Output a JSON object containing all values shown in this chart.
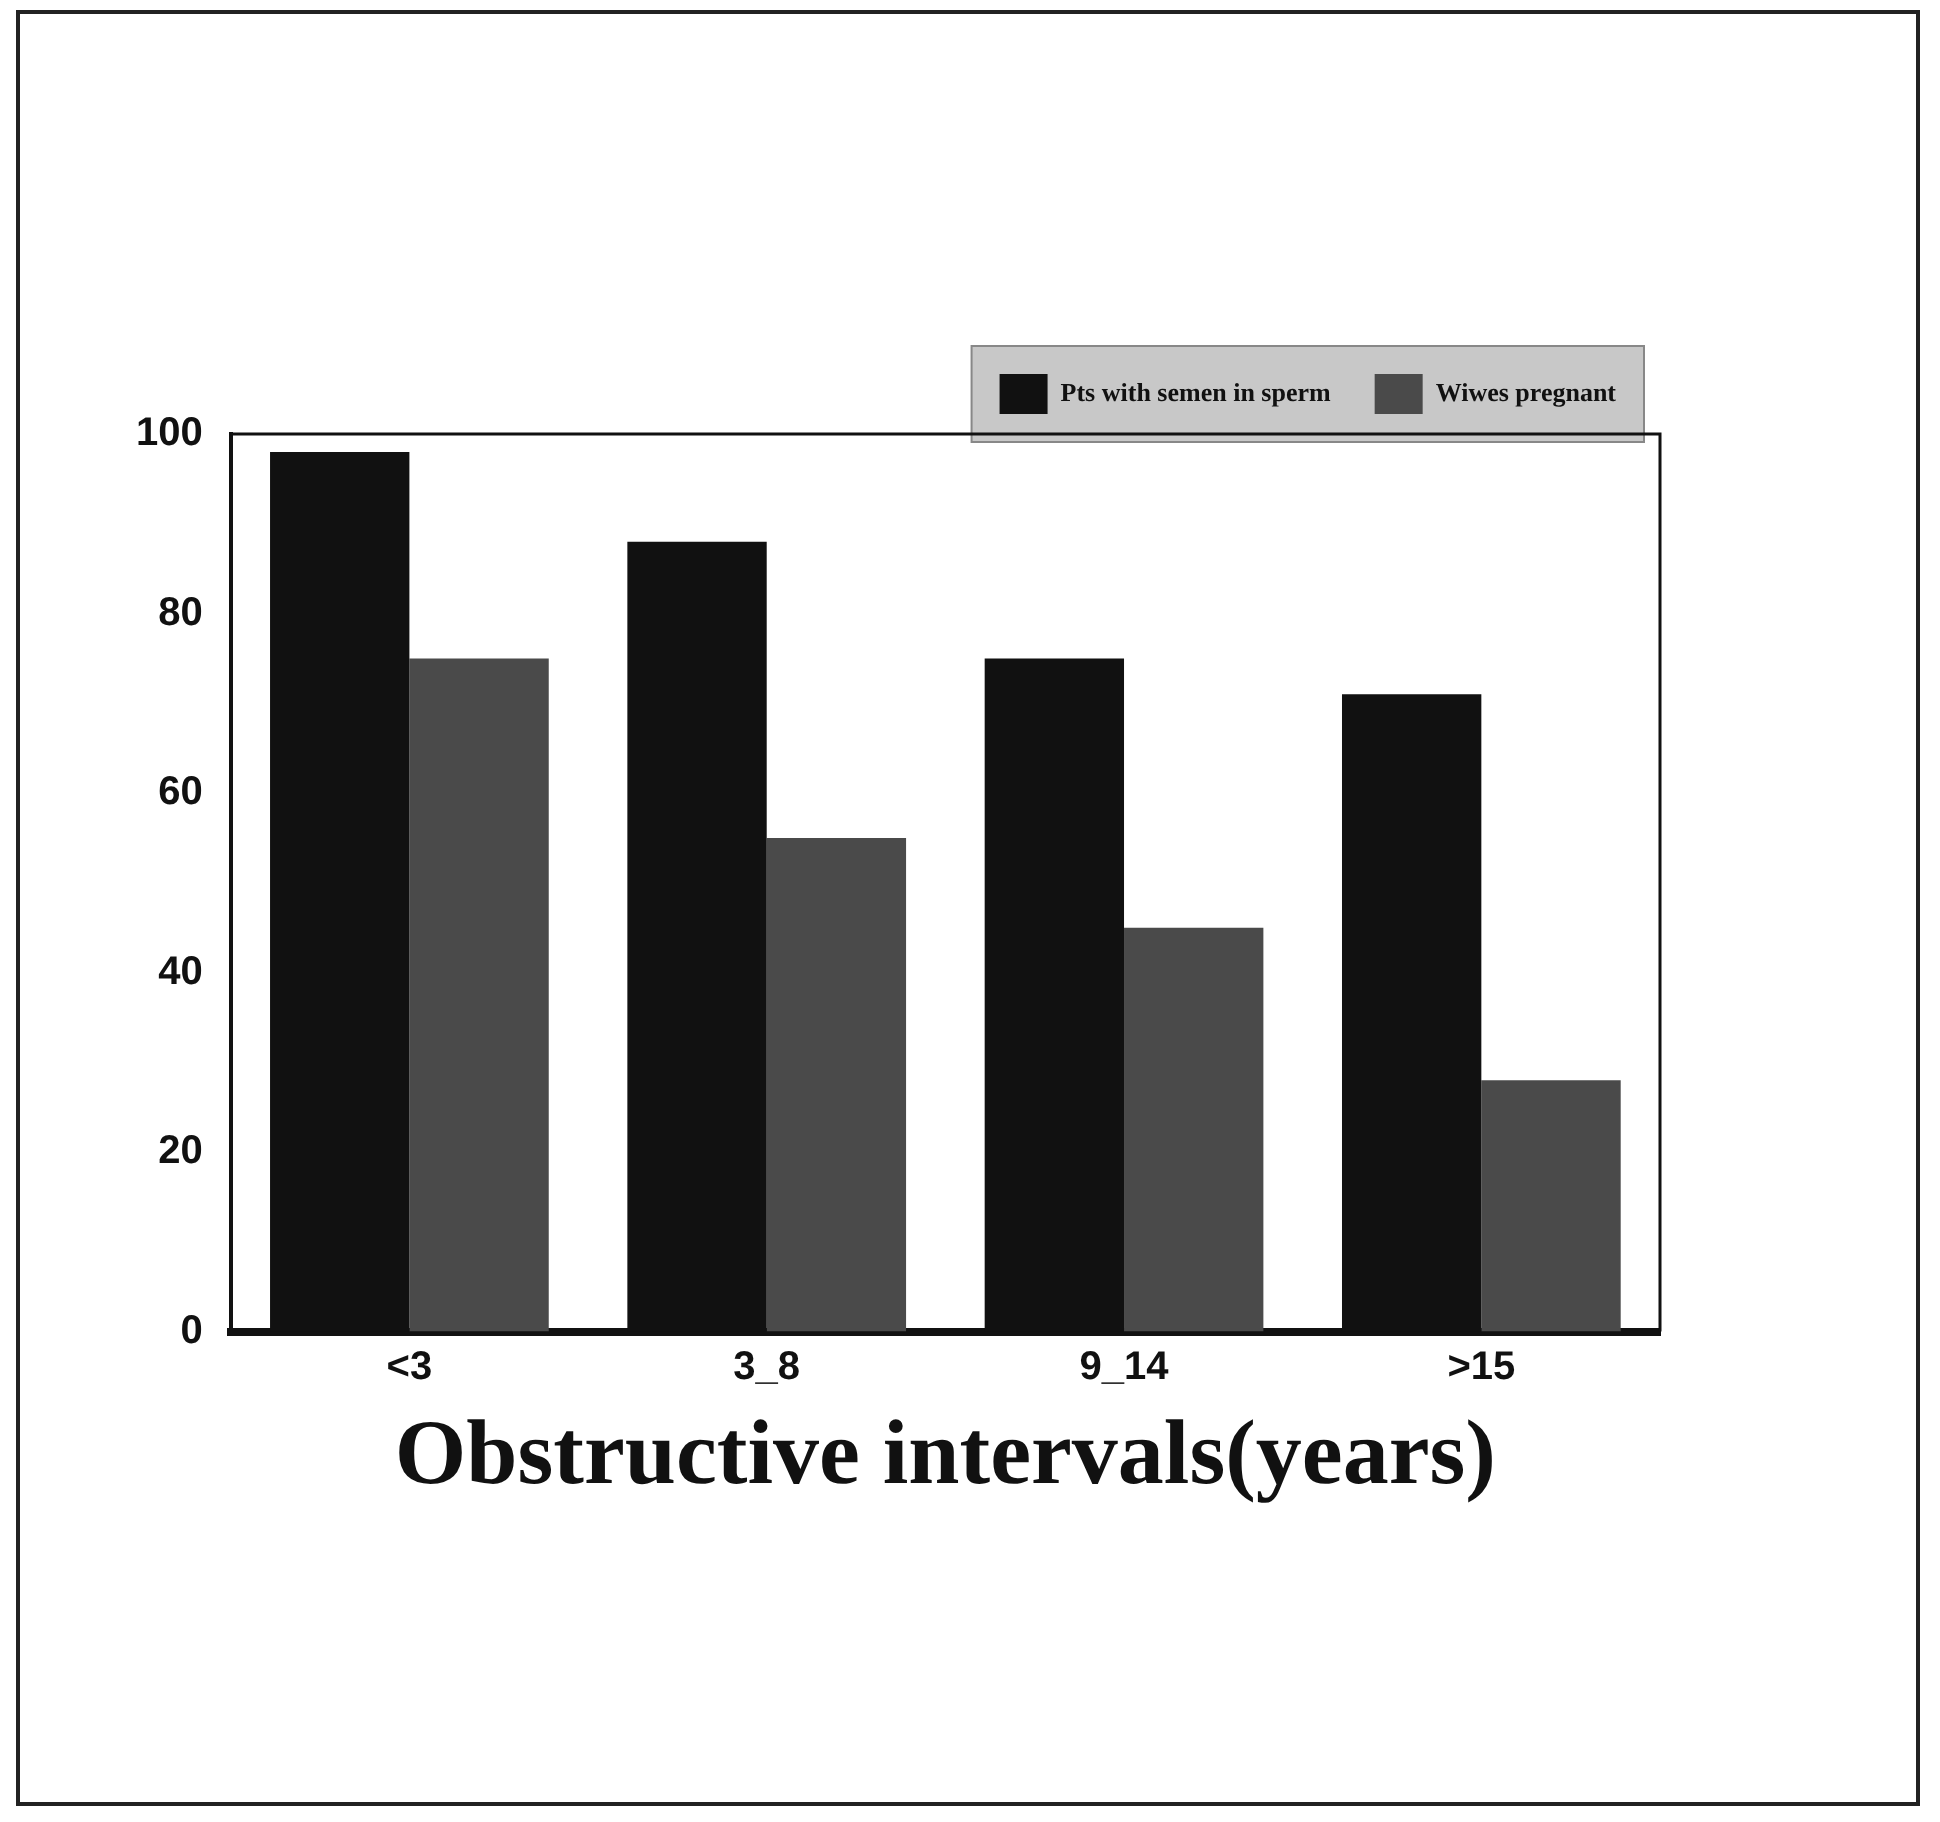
{
  "chart_data": {
    "type": "bar",
    "xlabel": "Obstructive intervals(years)",
    "categories": [
      "<3",
      "3_8",
      "9_14",
      ">15"
    ],
    "series": [
      {
        "name": "Pts with semen in sperm",
        "color": "#111111",
        "values": [
          98,
          88,
          75,
          71
        ]
      },
      {
        "name": "Wiwes pregnant",
        "color": "#4a4a4a",
        "values": [
          75,
          55,
          45,
          28
        ]
      }
    ],
    "ylim": [
      0,
      100
    ],
    "yticks": [
      0,
      20,
      40,
      60,
      80,
      100
    ],
    "grid": false,
    "legend": "top right"
  }
}
